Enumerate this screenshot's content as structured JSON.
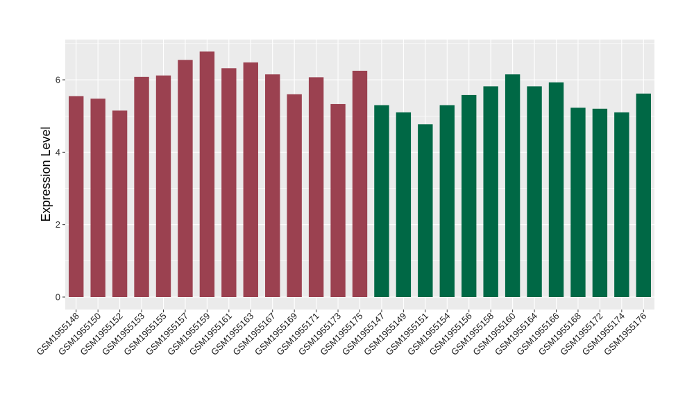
{
  "chart_data": {
    "type": "bar",
    "title": "",
    "xlabel": "",
    "ylabel": "Expression Level",
    "ylim": [
      0,
      7.1
    ],
    "yticks": [
      0,
      2,
      4,
      6
    ],
    "grid": true,
    "legend": "none",
    "colors": {
      "panel_background": "#ebebeb",
      "grid_major": "#ffffff",
      "group_a": "#9b4150",
      "group_b": "#006845"
    },
    "categories": [
      "GSM1955148",
      "GSM1955150",
      "GSM1955152",
      "GSM1955153",
      "GSM1955155",
      "GSM1955157",
      "GSM1955159",
      "GSM1955161",
      "GSM1955163",
      "GSM1955167",
      "GSM1955169",
      "GSM1955171",
      "GSM1955173",
      "GSM1955175",
      "GSM1955147",
      "GSM1955149",
      "GSM1955151",
      "GSM1955154",
      "GSM1955156",
      "GSM1955158",
      "GSM1955160",
      "GSM1955164",
      "GSM1955166",
      "GSM1955168",
      "GSM1955172",
      "GSM1955174",
      "GSM1955176"
    ],
    "values": [
      5.55,
      5.48,
      5.15,
      6.08,
      6.12,
      6.55,
      6.78,
      6.32,
      6.48,
      6.15,
      5.6,
      6.07,
      5.33,
      6.25,
      5.3,
      5.1,
      4.77,
      5.3,
      5.58,
      5.82,
      6.15,
      5.82,
      5.93,
      5.23,
      5.2,
      5.1,
      5.62
    ],
    "bar_groups": [
      "a",
      "a",
      "a",
      "a",
      "a",
      "a",
      "a",
      "a",
      "a",
      "a",
      "a",
      "a",
      "a",
      "a",
      "b",
      "b",
      "b",
      "b",
      "b",
      "b",
      "b",
      "b",
      "b",
      "b",
      "b",
      "b",
      "b"
    ]
  }
}
